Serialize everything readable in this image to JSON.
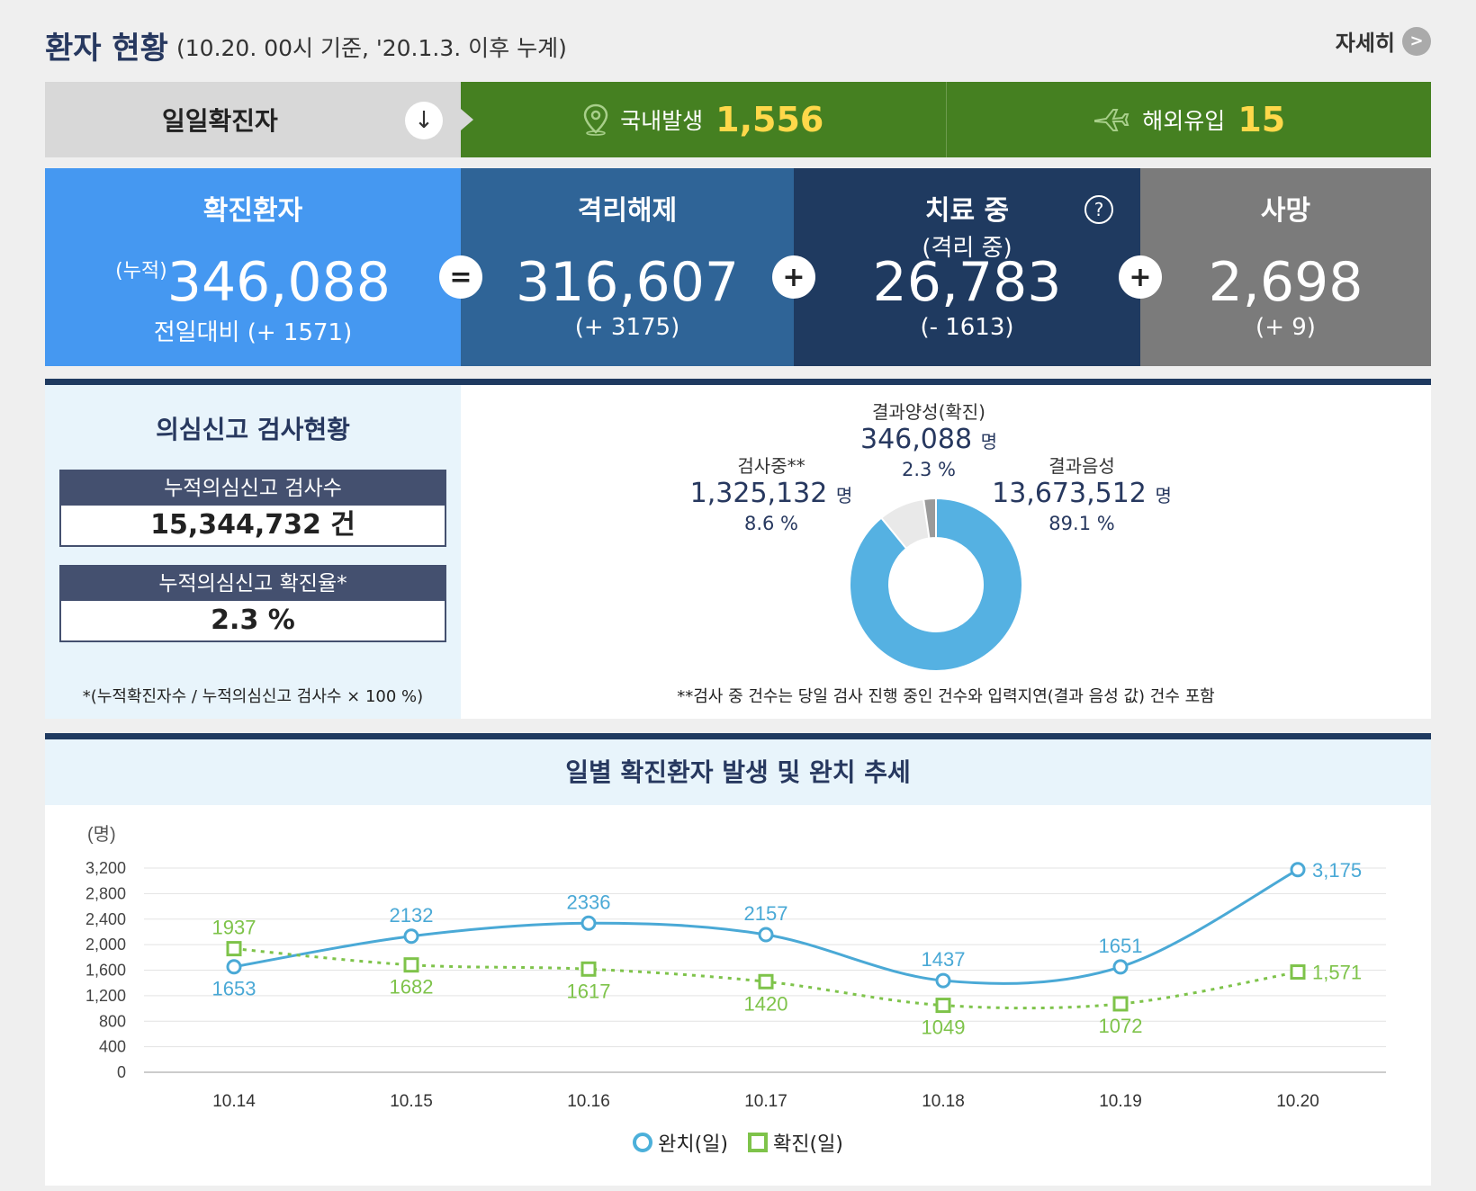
{
  "header": {
    "title": "환자 현황",
    "subtitle": "(10.20. 00시 기준, '20.1.3. 이후 누계)",
    "more_label": "자세히",
    "more_icon": "chevron-right-icon"
  },
  "daily": {
    "label": "일일확진자",
    "label_icon": "arrow-down-icon",
    "domestic_label": "국내발생",
    "domestic_value": "1,556",
    "domestic_icon": "map-pin-icon",
    "overseas_label": "해외유입",
    "overseas_value": "15",
    "overseas_icon": "airplane-icon",
    "highlight_color": "#ffd84a"
  },
  "stats": {
    "confirmed": {
      "title": "확진환자",
      "prefix": "(누적)",
      "value": "346,088",
      "diff": "전일대비 (+ 1571)",
      "color": "#4598f1"
    },
    "op1": "=",
    "released": {
      "title": "격리해제",
      "value": "316,607",
      "diff": "(+ 3175)",
      "color": "#2f6497"
    },
    "op2": "+",
    "treating": {
      "title": "치료 중",
      "subtitle": "(격리 중)",
      "value": "26,783",
      "diff": "(- 1613)",
      "help": "?",
      "color": "#1f3a60"
    },
    "op3": "+",
    "deaths": {
      "title": "사망",
      "value": "2,698",
      "diff": "(+ 9)",
      "color": "#7b7b7b"
    }
  },
  "testing": {
    "heading": "의심신고 검사현황",
    "total_label": "누적의심신고 검사수",
    "total_value": "15,344,732 건",
    "rate_label": "누적의심신고 확진율*",
    "rate_value": "2.3 %",
    "rate_note": "*(누적확진자수 / 누적의심신고 검사수 × 100 %)",
    "pie_note": "**검사 중 건수는 당일 검사 진행 중인 건수와 입력지연(결과 음성 값) 건수 포함",
    "unit": "명",
    "segments": [
      {
        "name": "결과음성",
        "value": "13,673,512",
        "percent": "89.1 %",
        "share": 89.1,
        "color": "#55b1e2"
      },
      {
        "name": "검사중**",
        "value": "1,325,132",
        "percent": "8.6 %",
        "share": 8.6,
        "color": "#e9e9e9"
      },
      {
        "name": "결과양성(확진)",
        "value": "346,088",
        "percent": "2.3 %",
        "share": 2.3,
        "color": "#9a9a9a"
      }
    ]
  },
  "chart_data": {
    "type": "line",
    "title": "일별 확진환자 발생 및 완치 추세",
    "ylabel": "(명)",
    "x": [
      "10.14",
      "10.15",
      "10.16",
      "10.17",
      "10.18",
      "10.19",
      "10.20"
    ],
    "ylim": [
      0,
      3200
    ],
    "yticks": [
      "0",
      "400",
      "800",
      "1,200",
      "1,600",
      "2,000",
      "2,400",
      "2,800",
      "3,200"
    ],
    "ytick_values": [
      0,
      400,
      800,
      1200,
      1600,
      2000,
      2400,
      2800,
      3200
    ],
    "grid": true,
    "legend_position": "bottom",
    "series": [
      {
        "name": "완치(일)",
        "values": [
          1653,
          2132,
          2336,
          2157,
          1437,
          1651,
          3175
        ],
        "labels": [
          "1653",
          "2132",
          "2336",
          "2157",
          "1437",
          "1651",
          "3,175"
        ],
        "color": "#4aa9d6",
        "marker": "circle",
        "style": "solid"
      },
      {
        "name": "확진(일)",
        "values": [
          1937,
          1682,
          1617,
          1420,
          1049,
          1072,
          1571
        ],
        "labels": [
          "1937",
          "1682",
          "1617",
          "1420",
          "1049",
          "1072",
          "1,571"
        ],
        "color": "#7ec34a",
        "marker": "square",
        "style": "dotted"
      }
    ]
  }
}
